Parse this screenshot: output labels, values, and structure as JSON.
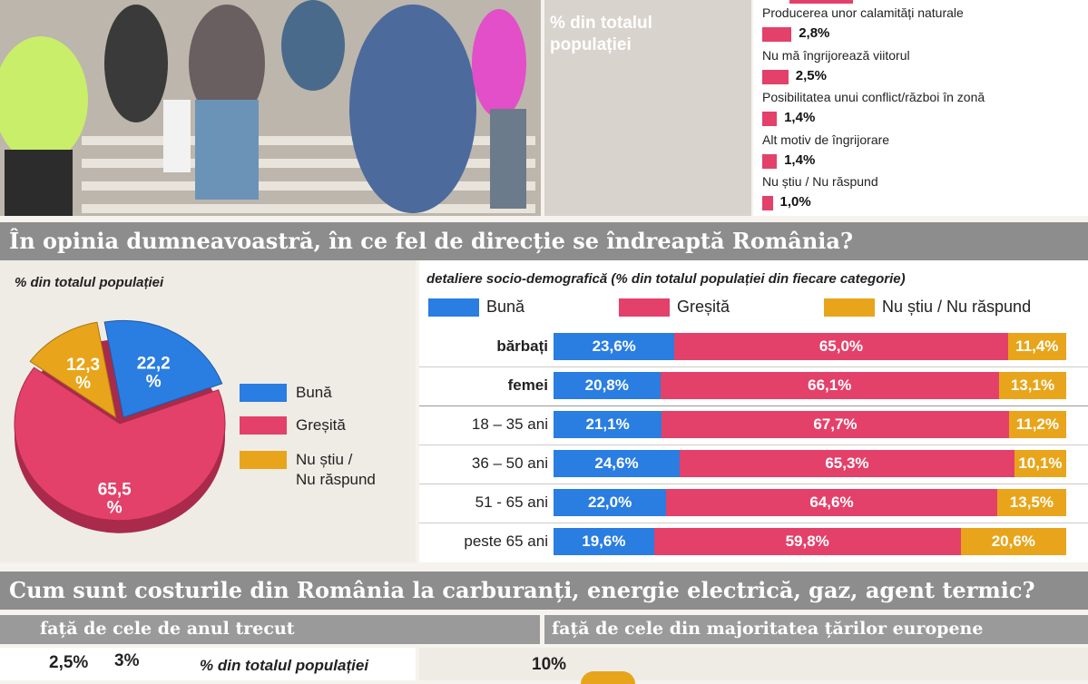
{
  "top_reasons": {
    "side_label": "% din totalul populației",
    "items": [
      {
        "label": "Producerea unor calamități naturale",
        "value": "2,8%",
        "num": 2.8
      },
      {
        "label": "Nu mă îngrijorează viitorul",
        "value": "2,5%",
        "num": 2.5
      },
      {
        "label": "Posibilitatea unui conflict/război în zonă",
        "value": "1,4%",
        "num": 1.4
      },
      {
        "label": "Alt motiv de îngrijorare",
        "value": "1,4%",
        "num": 1.4
      },
      {
        "label": "Nu știu / Nu răspund",
        "value": "1,0%",
        "num": 1.0
      }
    ]
  },
  "direction": {
    "question": "În opinia dumneavoastră, în ce fel de direcție se îndreaptă România?",
    "pie_label": "% din totalul populației",
    "bars_label": "detaliere socio-demografică (% din totalul populației din fiecare categorie)"
  },
  "costs": {
    "question": "Cum sunt costurile din România la carburanți, energie electrică, gaz, agent termic?",
    "left_sub": "față de cele de anul trecut",
    "right_sub": "față de cele din majoritatea țărilor europene",
    "left_pct_label": "% din totalul populației",
    "left_values": [
      "2,5%",
      "3%"
    ],
    "right_value": "10%"
  },
  "colors": {
    "buna": "#2a7de1",
    "gresita": "#e3416a",
    "nu_stiu": "#e8a51b"
  },
  "chart_data": [
    {
      "type": "pie",
      "categories": [
        "Bună",
        "Greșită",
        "Nu știu / Nu răspund"
      ],
      "values": [
        22.2,
        65.5,
        12.3
      ],
      "labels": [
        "22,2 %",
        "65,5 %",
        "12,3 %"
      ],
      "legend": [
        "Bună",
        "Greșită",
        "Nu știu / Nu răspund"
      ],
      "legend_lines": [
        [
          "Bună"
        ],
        [
          "Greșită"
        ],
        [
          "Nu știu /",
          "Nu răspund"
        ]
      ]
    },
    {
      "type": "bar",
      "orientation": "horizontal-stacked",
      "categories": [
        "bărbați",
        "femei",
        "18 – 35 ani",
        "36 – 50 ani",
        "51 - 65 ani",
        "peste 65 ani"
      ],
      "bold_categories": [
        true,
        true,
        false,
        false,
        false,
        false
      ],
      "series": [
        {
          "name": "Bună",
          "values": [
            23.6,
            20.8,
            21.1,
            24.6,
            22.0,
            19.6
          ],
          "labels": [
            "23,6%",
            "20,8%",
            "21,1%",
            "24,6%",
            "22,0%",
            "19,6%"
          ]
        },
        {
          "name": "Greșită",
          "values": [
            65.0,
            66.1,
            67.7,
            65.3,
            64.6,
            59.8
          ],
          "labels": [
            "65,0%",
            "66,1%",
            "67,7%",
            "65,3%",
            "64,6%",
            "59,8%"
          ]
        },
        {
          "name": "Nu știu / Nu răspund",
          "values": [
            11.4,
            13.1,
            11.2,
            10.1,
            13.5,
            20.6
          ],
          "labels": [
            "11,4%",
            "13,1%",
            "11,2%",
            "10,1%",
            "13,5%",
            "20,6%"
          ]
        }
      ]
    }
  ]
}
